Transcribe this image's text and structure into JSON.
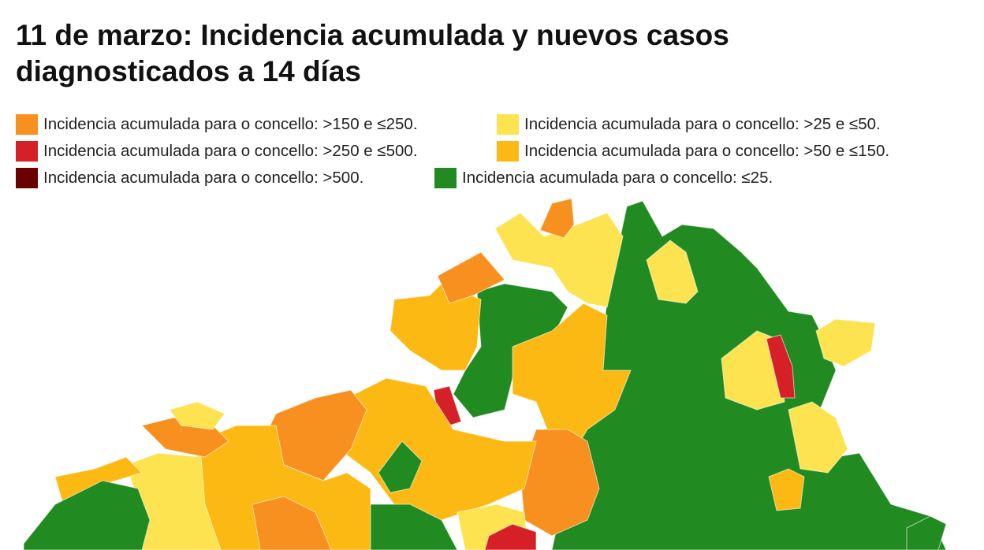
{
  "title": "11 de marzo: Incidencia acumulada y nuevos casos diagnosticados a 14 días",
  "legend": [
    {
      "label": "Incidencia acumulada para o concello: >150 e ≤250.",
      "color": "#f7901e"
    },
    {
      "label": "Incidencia acumulada para o concello: >250 e ≤500.",
      "color": "#d62027"
    },
    {
      "label": "Incidencia acumulada para o concello: >500.",
      "color": "#6b0000"
    },
    {
      "label": "Incidencia acumulada para o concello: >25 e ≤50.",
      "color": "#fde34f"
    },
    {
      "label": "Incidencia acumulada para o concello: >50 e ≤150.",
      "color": "#fdb913"
    },
    {
      "label": "Incidencia acumulada para o concello: ≤25.",
      "color": "#218a21"
    }
  ]
}
